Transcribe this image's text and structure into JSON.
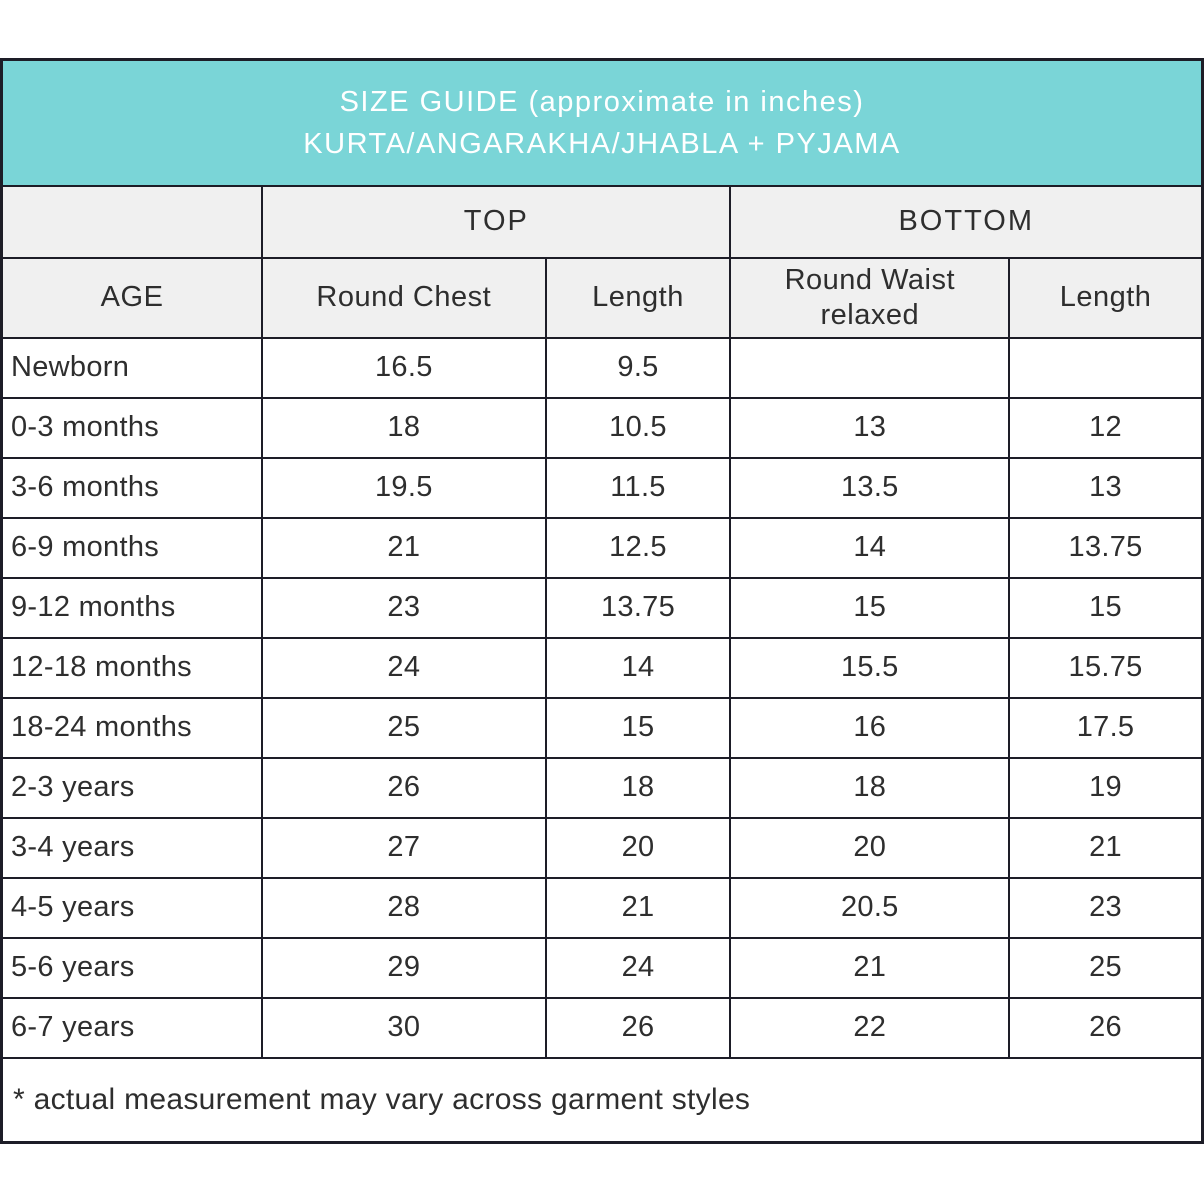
{
  "header": {
    "title_line1": "SIZE GUIDE (approximate in inches)",
    "title_line2": "KURTA/ANGARAKHA/JHABLA + PYJAMA"
  },
  "table_headers": {
    "group_top": "TOP",
    "group_bottom": "BOTTOM",
    "age": "AGE",
    "top_round_chest": "Round Chest",
    "top_length": "Length",
    "bottom_round_waist": "Round Waist relaxed",
    "bottom_length": "Length"
  },
  "chart_data": {
    "type": "table",
    "title": "SIZE GUIDE (approximate in inches) KURTA/ANGARAKHA/JHABLA + PYJAMA",
    "units": "inches",
    "column_groups": [
      "",
      "TOP",
      "TOP",
      "BOTTOM",
      "BOTTOM"
    ],
    "columns": [
      "AGE",
      "Round Chest",
      "Length",
      "Round Waist relaxed",
      "Length"
    ],
    "rows": [
      [
        "Newborn",
        16.5,
        9.5,
        null,
        null
      ],
      [
        "0-3 months",
        18,
        10.5,
        13,
        12
      ],
      [
        "3-6 months",
        19.5,
        11.5,
        13.5,
        13
      ],
      [
        "6-9 months",
        21,
        12.5,
        14,
        13.75
      ],
      [
        "9-12 months",
        23,
        13.75,
        15,
        15
      ],
      [
        "12-18 months",
        24,
        14,
        15.5,
        15.75
      ],
      [
        "18-24 months",
        25,
        15,
        16,
        17.5
      ],
      [
        "2-3 years",
        26,
        18,
        18,
        19
      ],
      [
        "3-4 years",
        27,
        20,
        20,
        21
      ],
      [
        "4-5 years",
        28,
        21,
        20.5,
        23
      ],
      [
        "5-6 years",
        29,
        24,
        21,
        25
      ],
      [
        "6-7 years",
        30,
        26,
        22,
        26
      ]
    ],
    "footnote": "* actual measurement may vary across garment styles"
  },
  "footer": {
    "note": "* actual measurement may vary across garment styles"
  },
  "colors": {
    "banner_teal": "#7ad5d7",
    "header_gray": "#f0f0f0",
    "border_dark": "#1d1d27",
    "title_text": "#ffffff",
    "body_text": "#2e2e2e"
  }
}
